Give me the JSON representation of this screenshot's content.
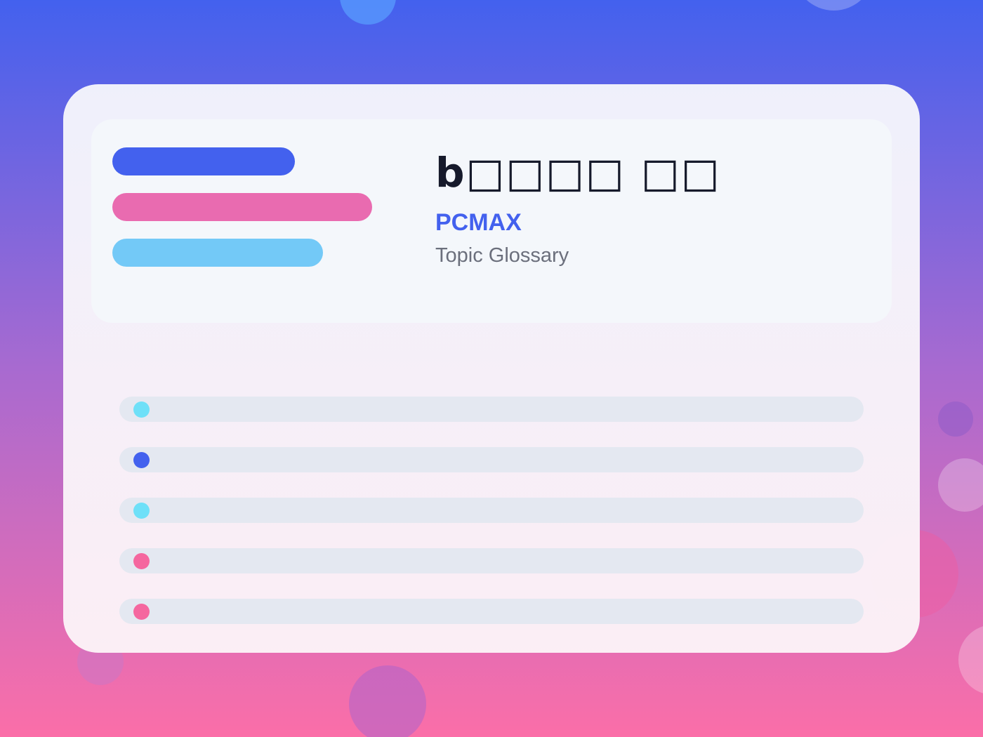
{
  "header": {
    "title": "b□□□□ □□",
    "brand": "PCMAX",
    "caption": "Topic Glossary"
  }
}
